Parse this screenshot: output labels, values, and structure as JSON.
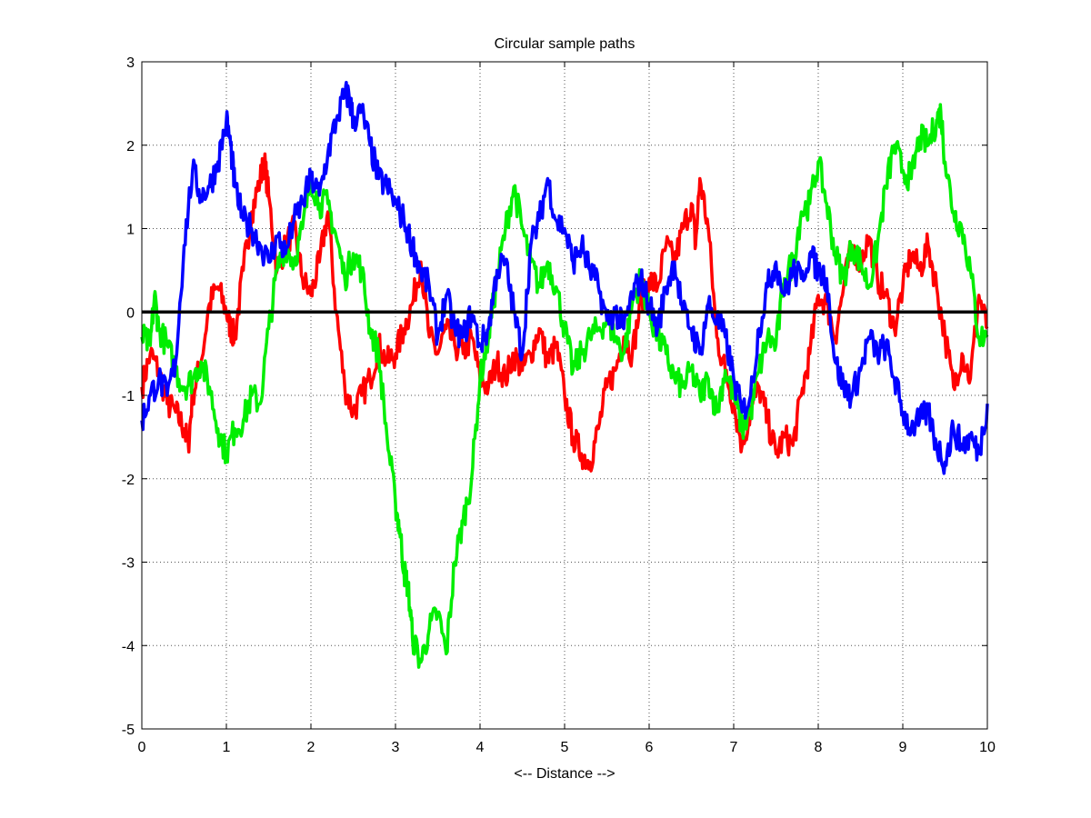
{
  "chart_data": {
    "type": "line",
    "title": "Circular sample paths",
    "xlabel": "<-- Distance -->",
    "ylabel": "",
    "xlim": [
      0,
      10
    ],
    "ylim": [
      -5,
      3
    ],
    "xticks": [
      0,
      1,
      2,
      3,
      4,
      5,
      6,
      7,
      8,
      9,
      10
    ],
    "yticks": [
      -5,
      -4,
      -3,
      -2,
      -1,
      0,
      1,
      2,
      3
    ],
    "grid": true,
    "legend": "none",
    "series": [
      {
        "color": "#ff0000",
        "x": [
          0,
          0.1,
          0.2,
          0.3,
          0.4,
          0.5,
          0.55,
          0.6,
          0.7,
          0.8,
          0.9,
          1.0,
          1.05,
          1.1,
          1.2,
          1.3,
          1.4,
          1.45,
          1.5,
          1.6,
          1.7,
          1.8,
          1.9,
          2.0,
          2.1,
          2.2,
          2.3,
          2.4,
          2.5,
          2.6,
          2.7,
          2.8,
          2.9,
          3.0,
          3.1,
          3.2,
          3.3,
          3.4,
          3.5,
          3.6,
          3.7,
          3.8,
          3.9,
          4.0,
          4.1,
          4.2,
          4.3,
          4.4,
          4.5,
          4.6,
          4.7,
          4.8,
          4.9,
          5.0,
          5.1,
          5.2,
          5.3,
          5.4,
          5.5,
          5.6,
          5.7,
          5.8,
          5.9,
          6.0,
          6.1,
          6.2,
          6.3,
          6.4,
          6.5,
          6.55,
          6.6,
          6.7,
          6.8,
          6.9,
          7.0,
          7.1,
          7.2,
          7.3,
          7.4,
          7.5,
          7.6,
          7.7,
          7.8,
          7.9,
          8.0,
          8.1,
          8.2,
          8.3,
          8.4,
          8.5,
          8.6,
          8.7,
          8.8,
          8.9,
          9.0,
          9.1,
          9.2,
          9.3,
          9.4,
          9.5,
          9.6,
          9.7,
          9.8,
          9.9,
          10.0
        ],
        "y": [
          -0.9,
          -0.5,
          -0.7,
          -1.1,
          -1.2,
          -1.4,
          -1.6,
          -1.0,
          -0.6,
          0.1,
          0.3,
          0.0,
          -0.2,
          -0.3,
          0.5,
          1.2,
          1.6,
          1.8,
          1.4,
          0.5,
          0.8,
          1.0,
          0.4,
          0.2,
          0.6,
          1.2,
          0.0,
          -0.9,
          -1.2,
          -1.0,
          -0.8,
          -0.4,
          -0.6,
          -0.5,
          -0.2,
          0.1,
          0.6,
          -0.3,
          -0.5,
          -0.2,
          -0.4,
          -0.5,
          -0.3,
          -0.8,
          -0.9,
          -0.6,
          -0.8,
          -0.5,
          -0.7,
          -0.5,
          -0.2,
          -0.6,
          -0.4,
          -1.0,
          -1.5,
          -1.7,
          -1.8,
          -1.4,
          -0.9,
          -0.7,
          -0.3,
          -0.5,
          0.1,
          0.4,
          0.3,
          0.8,
          0.6,
          1.0,
          1.3,
          0.8,
          1.6,
          1.0,
          -0.3,
          -0.7,
          -1.1,
          -1.6,
          -1.2,
          -0.9,
          -1.3,
          -1.7,
          -1.5,
          -1.6,
          -1.0,
          -0.5,
          0.2,
          0.1,
          -0.3,
          0.3,
          0.8,
          0.6,
          0.9,
          0.4,
          0.2,
          -0.2,
          0.3,
          0.7,
          0.5,
          0.8,
          0.3,
          -0.3,
          -0.9,
          -0.5,
          -0.8,
          0.2,
          -0.2
        ]
      },
      {
        "color": "#00ee00",
        "x": [
          0,
          0.1,
          0.15,
          0.2,
          0.3,
          0.4,
          0.5,
          0.6,
          0.7,
          0.8,
          0.9,
          1.0,
          1.1,
          1.2,
          1.3,
          1.4,
          1.5,
          1.6,
          1.7,
          1.8,
          1.9,
          2.0,
          2.1,
          2.2,
          2.3,
          2.4,
          2.5,
          2.6,
          2.7,
          2.8,
          2.9,
          3.0,
          3.05,
          3.1,
          3.15,
          3.2,
          3.3,
          3.4,
          3.5,
          3.6,
          3.7,
          3.8,
          3.9,
          4.0,
          4.1,
          4.2,
          4.3,
          4.4,
          4.5,
          4.6,
          4.7,
          4.8,
          4.9,
          5.0,
          5.1,
          5.2,
          5.3,
          5.4,
          5.5,
          5.6,
          5.7,
          5.8,
          5.9,
          6.0,
          6.1,
          6.2,
          6.3,
          6.4,
          6.5,
          6.6,
          6.7,
          6.8,
          6.9,
          7.0,
          7.1,
          7.2,
          7.3,
          7.4,
          7.5,
          7.6,
          7.7,
          7.8,
          7.9,
          8.0,
          8.1,
          8.2,
          8.3,
          8.4,
          8.5,
          8.6,
          8.7,
          8.8,
          8.9,
          9.0,
          9.1,
          9.2,
          9.3,
          9.4,
          9.45,
          9.5,
          9.6,
          9.7,
          9.8,
          9.9,
          10.0
        ],
        "y": [
          -0.3,
          -0.4,
          0.2,
          -0.2,
          -0.4,
          -0.7,
          -0.9,
          -0.8,
          -0.6,
          -0.9,
          -1.4,
          -1.7,
          -1.4,
          -1.3,
          -1.0,
          -1.1,
          -0.2,
          0.5,
          0.8,
          0.6,
          1.0,
          1.6,
          1.3,
          1.3,
          0.9,
          0.4,
          0.7,
          0.5,
          -0.2,
          -0.5,
          -1.5,
          -2.3,
          -2.6,
          -3.1,
          -3.3,
          -3.9,
          -4.2,
          -3.8,
          -3.6,
          -4.1,
          -3.0,
          -2.5,
          -2.0,
          -0.8,
          -0.3,
          0.4,
          1.0,
          1.5,
          1.0,
          0.6,
          0.3,
          0.6,
          0.3,
          -0.2,
          -0.7,
          -0.5,
          -0.3,
          -0.2,
          -0.1,
          -0.3,
          -0.5,
          0.1,
          0.4,
          0.0,
          -0.3,
          -0.5,
          -0.8,
          -0.9,
          -0.7,
          -1.0,
          -0.8,
          -1.2,
          -0.7,
          -1.0,
          -1.4,
          -1.2,
          -0.7,
          -0.3,
          -0.4,
          0.4,
          0.6,
          1.2,
          1.3,
          1.8,
          1.3,
          0.7,
          0.4,
          0.8,
          0.6,
          0.3,
          0.8,
          1.5,
          2.0,
          1.7,
          1.6,
          2.1,
          2.0,
          2.3,
          2.4,
          1.8,
          1.2,
          1.0,
          0.5,
          -0.3,
          -0.3
        ]
      },
      {
        "color": "#0000ff",
        "x": [
          0,
          0.1,
          0.2,
          0.3,
          0.4,
          0.5,
          0.6,
          0.7,
          0.8,
          0.9,
          1.0,
          1.05,
          1.1,
          1.2,
          1.3,
          1.4,
          1.5,
          1.6,
          1.7,
          1.8,
          1.9,
          2.0,
          2.1,
          2.2,
          2.3,
          2.4,
          2.45,
          2.5,
          2.6,
          2.7,
          2.8,
          2.9,
          3.0,
          3.1,
          3.2,
          3.3,
          3.4,
          3.5,
          3.6,
          3.7,
          3.8,
          3.9,
          4.0,
          4.1,
          4.2,
          4.3,
          4.4,
          4.5,
          4.6,
          4.7,
          4.8,
          4.9,
          5.0,
          5.1,
          5.2,
          5.3,
          5.4,
          5.5,
          5.6,
          5.7,
          5.8,
          5.9,
          6.0,
          6.1,
          6.2,
          6.3,
          6.4,
          6.5,
          6.6,
          6.7,
          6.8,
          6.9,
          7.0,
          7.1,
          7.2,
          7.3,
          7.4,
          7.5,
          7.6,
          7.7,
          7.8,
          7.9,
          8.0,
          8.1,
          8.2,
          8.3,
          8.4,
          8.5,
          8.6,
          8.7,
          8.8,
          8.9,
          9.0,
          9.1,
          9.2,
          9.3,
          9.4,
          9.5,
          9.6,
          9.7,
          9.8,
          9.9,
          10.0
        ],
        "y": [
          -1.3,
          -1.0,
          -0.8,
          -1.0,
          -0.6,
          0.8,
          1.7,
          1.4,
          1.5,
          1.8,
          2.3,
          2.0,
          1.5,
          1.1,
          1.0,
          0.8,
          0.6,
          0.9,
          0.7,
          1.1,
          1.3,
          1.6,
          1.4,
          1.9,
          2.3,
          2.6,
          2.6,
          2.3,
          2.4,
          2.0,
          1.6,
          1.5,
          1.3,
          1.1,
          0.8,
          0.5,
          0.3,
          -0.3,
          0.2,
          -0.2,
          -0.3,
          0.0,
          -0.4,
          -0.2,
          0.5,
          0.6,
          0.0,
          -0.5,
          0.8,
          1.1,
          1.6,
          1.1,
          1.0,
          0.6,
          0.8,
          0.5,
          0.3,
          -0.1,
          0.0,
          -0.2,
          0.2,
          0.4,
          0.1,
          -0.2,
          0.3,
          0.6,
          0.0,
          -0.2,
          -0.5,
          0.1,
          -0.1,
          -0.3,
          -0.8,
          -1.2,
          -1.0,
          -0.2,
          0.3,
          0.6,
          0.2,
          0.5,
          0.4,
          0.7,
          0.5,
          0.4,
          -0.6,
          -0.9,
          -1.0,
          -0.7,
          -0.3,
          -0.5,
          -0.4,
          -0.8,
          -1.2,
          -1.4,
          -1.3,
          -1.2,
          -1.6,
          -1.8,
          -1.4,
          -1.6,
          -1.5,
          -1.7,
          -1.1
        ]
      },
      {
        "color": "#000000",
        "x": [
          0,
          10
        ],
        "y": [
          0,
          0
        ]
      }
    ]
  }
}
